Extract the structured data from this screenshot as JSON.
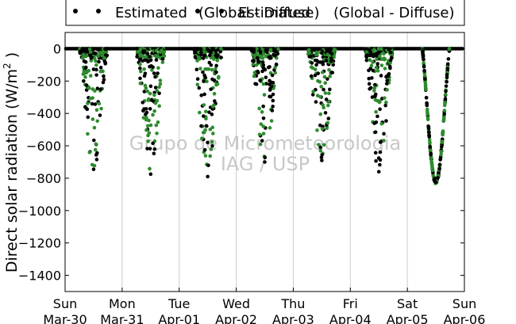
{
  "chart_data": {
    "type": "scatter",
    "ylabel": "Direct solar radiation (W/m",
    "ylabel_sup": "2",
    "ylabel_end": " )",
    "ylim": [
      -1500,
      100
    ],
    "yticks": [
      0,
      -200,
      -400,
      -600,
      -800,
      -1000,
      -1200,
      -1400
    ],
    "xlim": [
      "2014-03-30",
      "2014-04-06"
    ],
    "xticks": [
      {
        "top": "Sun",
        "bottom": "Mar-30"
      },
      {
        "top": "Mon",
        "bottom": "Mar-31"
      },
      {
        "top": "Tue",
        "bottom": "Apr-01"
      },
      {
        "top": "Wed",
        "bottom": "Apr-02"
      },
      {
        "top": "Thu",
        "bottom": "Apr-03"
      },
      {
        "top": "Fri",
        "bottom": "Apr-04"
      },
      {
        "top": "Sat",
        "bottom": "Apr-05"
      },
      {
        "top": "Sun",
        "bottom": "Apr-06"
      }
    ],
    "grid": "vertical",
    "legend": {
      "placement": "top",
      "entries": [
        "Estimated",
        "(Global - Diffuse)",
        "Estimated",
        "(Global - Diffuse)"
      ]
    },
    "series": [
      {
        "name": "Estimated",
        "color": "#000000"
      },
      {
        "name": "(Global - Diffuse)",
        "color": "#2e8b2e"
      }
    ],
    "daily_peak_min": [
      {
        "day": "2014-03-30",
        "min": -745
      },
      {
        "day": "2014-03-31",
        "min": -775
      },
      {
        "day": "2014-04-01",
        "min": -790
      },
      {
        "day": "2014-04-02",
        "min": -700
      },
      {
        "day": "2014-04-03",
        "min": -690
      },
      {
        "day": "2014-04-04",
        "min": -760
      },
      {
        "day": "2014-04-05",
        "min": -825
      }
    ],
    "watermark": [
      "Grupo de Micrometeorologia",
      "IAG / USP"
    ]
  }
}
